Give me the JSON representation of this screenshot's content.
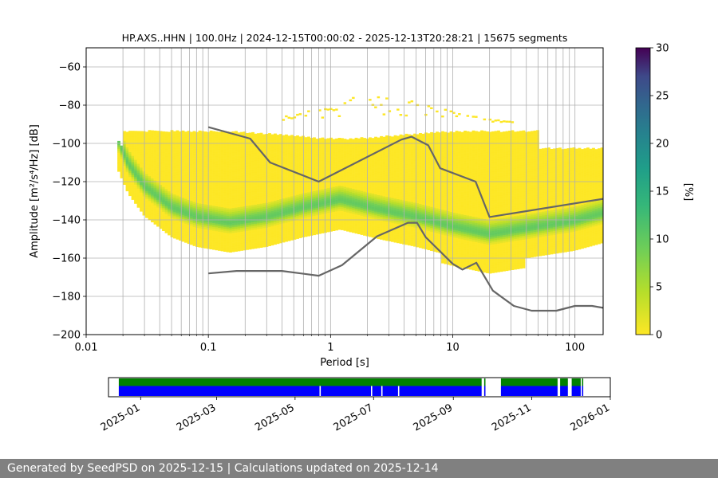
{
  "chart_data": {
    "type": "heatmap",
    "title": "HP.AXS..HHN | 100.0Hz | 2024-12-15T00:00:02 - 2025-12-13T20:28:21 | 15675 segments",
    "xlabel": "Period [s]",
    "ylabel": "Amplitude [m²/s⁴/Hz] [dB]",
    "x_scale": "log",
    "xlim": [
      0.01,
      170
    ],
    "ylim": [
      -200,
      -50
    ],
    "x_ticks": [
      {
        "value": 0.01,
        "label": "0.01"
      },
      {
        "value": 0.1,
        "label": "0.1"
      },
      {
        "value": 1,
        "label": "1"
      },
      {
        "value": 10,
        "label": "10"
      },
      {
        "value": 100,
        "label": "100"
      }
    ],
    "y_ticks": [
      -60,
      -80,
      -100,
      -120,
      -140,
      -160,
      -180,
      -200
    ],
    "grid": true,
    "colormap": "viridis_r",
    "colorbar": {
      "label": "[%]",
      "min": 0,
      "max": 30,
      "ticks": [
        0,
        5,
        10,
        15,
        20,
        25,
        30
      ]
    },
    "mode_curve": [
      {
        "period": 0.018,
        "db": -97
      },
      {
        "period": 0.022,
        "db": -110
      },
      {
        "period": 0.03,
        "db": -122
      },
      {
        "period": 0.05,
        "db": -133
      },
      {
        "period": 0.08,
        "db": -138
      },
      {
        "period": 0.15,
        "db": -141
      },
      {
        "period": 0.3,
        "db": -138
      },
      {
        "period": 0.6,
        "db": -133
      },
      {
        "period": 1.2,
        "db": -129
      },
      {
        "period": 2.5,
        "db": -134
      },
      {
        "period": 5,
        "db": -138
      },
      {
        "period": 10,
        "db": -143
      },
      {
        "period": 20,
        "db": -147
      },
      {
        "period": 50,
        "db": -143
      },
      {
        "period": 100,
        "db": -140
      },
      {
        "period": 170,
        "db": -136
      }
    ],
    "series": [
      {
        "name": "",
        "points": [
          {
            "period": 0.1,
            "db": -91.5
          },
          {
            "period": 0.22,
            "db": -97.5
          },
          {
            "period": 0.32,
            "db": -110
          },
          {
            "period": 0.8,
            "db": -120
          },
          {
            "period": 3.8,
            "db": -98
          },
          {
            "period": 4.6,
            "db": -96.5
          },
          {
            "period": 6.3,
            "db": -101
          },
          {
            "period": 7.9,
            "db": -113
          },
          {
            "period": 15.4,
            "db": -120
          },
          {
            "period": 20,
            "db": -138.5
          },
          {
            "period": 170,
            "db": -129
          }
        ]
      },
      {
        "name": "",
        "points": [
          {
            "period": 0.1,
            "db": -168
          },
          {
            "period": 0.17,
            "db": -166.7
          },
          {
            "period": 0.4,
            "db": -166.7
          },
          {
            "period": 0.8,
            "db": -169.2
          },
          {
            "period": 1.24,
            "db": -163.7
          },
          {
            "period": 2.4,
            "db": -148.6
          },
          {
            "period": 4.3,
            "db": -141.5
          },
          {
            "period": 5.1,
            "db": -141.5
          },
          {
            "period": 6.0,
            "db": -149
          },
          {
            "period": 10,
            "db": -163
          },
          {
            "period": 12,
            "db": -166
          },
          {
            "period": 15.6,
            "db": -162.4
          },
          {
            "period": 21.3,
            "db": -177
          },
          {
            "period": 31.6,
            "db": -185
          },
          {
            "period": 44.2,
            "db": -187.5
          },
          {
            "period": 70.6,
            "db": -187.5
          },
          {
            "period": 100,
            "db": -185
          },
          {
            "period": 138,
            "db": -185
          },
          {
            "period": 170,
            "db": -186
          }
        ]
      }
    ]
  },
  "availability": {
    "type": "timeline",
    "x_ticks": [
      {
        "date": "2025-01-01",
        "label": "2025-01"
      },
      {
        "date": "2025-03-01",
        "label": "2025-03"
      },
      {
        "date": "2025-05-01",
        "label": "2025-05"
      },
      {
        "date": "2025-07-01",
        "label": "2025-07"
      },
      {
        "date": "2025-09-01",
        "label": "2025-09"
      },
      {
        "date": "2025-11-01",
        "label": "2025-11"
      },
      {
        "date": "2026-01-01",
        "label": "2026-01"
      }
    ],
    "xlim": [
      "2024-12-07",
      "2026-01-01"
    ],
    "colors": {
      "used": "#008000",
      "available": "#0000ff"
    },
    "used_segments": [
      [
        "2024-12-15",
        "2025-09-23"
      ],
      [
        "2025-09-25",
        "2025-09-26"
      ],
      [
        "2025-10-08",
        "2025-11-21"
      ],
      [
        "2025-11-23",
        "2025-11-29"
      ],
      [
        "2025-12-02",
        "2025-12-09"
      ],
      [
        "2025-12-10",
        "2025-12-11"
      ]
    ],
    "available_segments": [
      [
        "2024-12-15",
        "2025-05-20"
      ],
      [
        "2025-05-21",
        "2025-06-29"
      ],
      [
        "2025-06-30",
        "2025-07-07"
      ],
      [
        "2025-07-08",
        "2025-07-20"
      ],
      [
        "2025-07-21",
        "2025-09-23"
      ],
      [
        "2025-09-25",
        "2025-09-26"
      ],
      [
        "2025-10-08",
        "2025-11-21"
      ],
      [
        "2025-11-23",
        "2025-11-29"
      ],
      [
        "2025-12-02",
        "2025-12-09"
      ],
      [
        "2025-12-10",
        "2025-12-11"
      ]
    ]
  },
  "footer": {
    "text": "Generated by SeedPSD on 2025-12-15 | Calculations updated on 2025-12-14"
  }
}
